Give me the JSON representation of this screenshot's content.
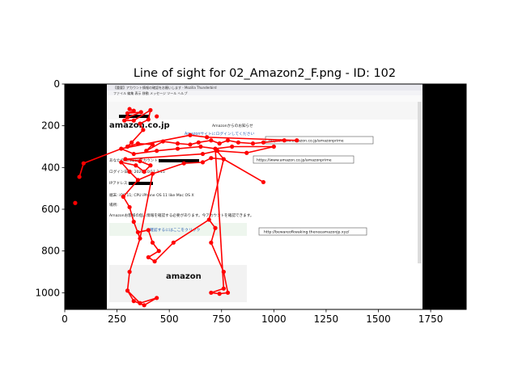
{
  "chart_data": {
    "type": "scatter",
    "title": "Line of sight for 02_Amazon2_F.png - ID: 102",
    "xlabel": "",
    "ylabel": "",
    "xlim": [
      0,
      1920
    ],
    "ylim": [
      1080,
      0
    ],
    "y_inverted": true,
    "xticks": [
      0,
      250,
      500,
      750,
      1000,
      1250,
      1500,
      1750
    ],
    "yticks": [
      0,
      200,
      400,
      600,
      800,
      1000
    ],
    "grid": false,
    "legend": "none",
    "series_color": "#ff0000",
    "background": {
      "type": "screenshot",
      "window_title": "【重要】アカウント情報の確認をお願いします - Mozilla Thunderbird",
      "menu": "ファイル  編集  表示  移動  メッセージ  ツール  ヘルプ",
      "logo": "amazon.co.jp",
      "header_text": "Amazonからのお知らせ",
      "link_top": "Amazonサイトにログインしてください",
      "fields": [
        "あなたのAmazonアカウント",
        "ログイン日時: 2020/10/11 2:15",
        "IPアドレス:",
        "端末: iOS 11; CPU iPhone OS 11 like Mac OS X",
        "場所:"
      ],
      "notice": "Amazonお客様の個人情報を確認する必要があります。今アカウントを確認できます。",
      "button_link": "確認するにはここをクリック",
      "footer_logo": "amazon",
      "annotations": [
        "https://www.amazon.co.jp/amazonprime",
        "https://www.amazon.co.jp/amazonprime",
        "http://bewareofkwaking.theneeamazonjp.xyz/"
      ]
    },
    "fixations": [
      {
        "x": 310,
        "y": 120
      },
      {
        "x": 330,
        "y": 128
      },
      {
        "x": 300,
        "y": 140
      },
      {
        "x": 365,
        "y": 135
      },
      {
        "x": 300,
        "y": 160
      },
      {
        "x": 285,
        "y": 175
      },
      {
        "x": 330,
        "y": 175
      },
      {
        "x": 410,
        "y": 125
      },
      {
        "x": 400,
        "y": 170
      },
      {
        "x": 360,
        "y": 190
      },
      {
        "x": 375,
        "y": 220
      },
      {
        "x": 440,
        "y": 155
      },
      {
        "x": 320,
        "y": 280
      },
      {
        "x": 300,
        "y": 300
      },
      {
        "x": 350,
        "y": 285
      },
      {
        "x": 420,
        "y": 290
      },
      {
        "x": 390,
        "y": 320
      },
      {
        "x": 470,
        "y": 275
      },
      {
        "x": 540,
        "y": 285
      },
      {
        "x": 600,
        "y": 290
      },
      {
        "x": 640,
        "y": 280
      },
      {
        "x": 700,
        "y": 270
      },
      {
        "x": 740,
        "y": 285
      },
      {
        "x": 780,
        "y": 270
      },
      {
        "x": 830,
        "y": 280
      },
      {
        "x": 900,
        "y": 285
      },
      {
        "x": 950,
        "y": 280
      },
      {
        "x": 1050,
        "y": 270
      },
      {
        "x": 1110,
        "y": 270
      },
      {
        "x": 680,
        "y": 255
      },
      {
        "x": 600,
        "y": 245
      },
      {
        "x": 270,
        "y": 310
      },
      {
        "x": 330,
        "y": 335
      },
      {
        "x": 440,
        "y": 320
      },
      {
        "x": 540,
        "y": 310
      },
      {
        "x": 650,
        "y": 300
      },
      {
        "x": 720,
        "y": 310
      },
      {
        "x": 800,
        "y": 300
      },
      {
        "x": 1000,
        "y": 300
      },
      {
        "x": 870,
        "y": 330
      },
      {
        "x": 730,
        "y": 320
      },
      {
        "x": 660,
        "y": 335
      },
      {
        "x": 290,
        "y": 360
      },
      {
        "x": 360,
        "y": 370
      },
      {
        "x": 410,
        "y": 390
      },
      {
        "x": 380,
        "y": 420
      },
      {
        "x": 340,
        "y": 390
      },
      {
        "x": 270,
        "y": 375
      },
      {
        "x": 310,
        "y": 420
      },
      {
        "x": 350,
        "y": 460
      },
      {
        "x": 420,
        "y": 430
      },
      {
        "x": 570,
        "y": 380
      },
      {
        "x": 660,
        "y": 375
      },
      {
        "x": 700,
        "y": 355
      },
      {
        "x": 760,
        "y": 360
      },
      {
        "x": 950,
        "y": 470
      },
      {
        "x": 90,
        "y": 380
      },
      {
        "x": 70,
        "y": 445
      },
      {
        "x": 50,
        "y": 570
      },
      {
        "x": 280,
        "y": 540
      },
      {
        "x": 310,
        "y": 590
      },
      {
        "x": 330,
        "y": 660
      },
      {
        "x": 360,
        "y": 740
      },
      {
        "x": 350,
        "y": 710
      },
      {
        "x": 400,
        "y": 700
      },
      {
        "x": 420,
        "y": 760
      },
      {
        "x": 450,
        "y": 800
      },
      {
        "x": 400,
        "y": 830
      },
      {
        "x": 430,
        "y": 850
      },
      {
        "x": 520,
        "y": 760
      },
      {
        "x": 690,
        "y": 650
      },
      {
        "x": 720,
        "y": 690
      },
      {
        "x": 700,
        "y": 760
      },
      {
        "x": 760,
        "y": 900
      },
      {
        "x": 780,
        "y": 1000
      },
      {
        "x": 740,
        "y": 1005
      },
      {
        "x": 700,
        "y": 1000
      },
      {
        "x": 760,
        "y": 980
      },
      {
        "x": 310,
        "y": 900
      },
      {
        "x": 300,
        "y": 990
      },
      {
        "x": 330,
        "y": 1040
      },
      {
        "x": 380,
        "y": 1060
      },
      {
        "x": 440,
        "y": 1025
      },
      {
        "x": 360,
        "y": 1050
      }
    ],
    "segments": [
      [
        [
          310,
          120
        ],
        [
          330,
          128
        ]
      ],
      [
        [
          330,
          128
        ],
        [
          300,
          140
        ]
      ],
      [
        [
          300,
          140
        ],
        [
          365,
          135
        ]
      ],
      [
        [
          365,
          135
        ],
        [
          300,
          160
        ]
      ],
      [
        [
          300,
          160
        ],
        [
          285,
          175
        ]
      ],
      [
        [
          285,
          175
        ],
        [
          330,
          175
        ]
      ],
      [
        [
          330,
          175
        ],
        [
          410,
          125
        ]
      ],
      [
        [
          410,
          125
        ],
        [
          400,
          170
        ]
      ],
      [
        [
          400,
          170
        ],
        [
          360,
          190
        ]
      ],
      [
        [
          360,
          190
        ],
        [
          375,
          220
        ]
      ],
      [
        [
          375,
          220
        ],
        [
          320,
          280
        ]
      ],
      [
        [
          320,
          280
        ],
        [
          300,
          300
        ]
      ],
      [
        [
          300,
          300
        ],
        [
          350,
          285
        ]
      ],
      [
        [
          350,
          285
        ],
        [
          420,
          290
        ]
      ],
      [
        [
          420,
          290
        ],
        [
          390,
          320
        ]
      ],
      [
        [
          390,
          320
        ],
        [
          470,
          275
        ]
      ],
      [
        [
          470,
          275
        ],
        [
          540,
          285
        ]
      ],
      [
        [
          540,
          285
        ],
        [
          600,
          290
        ]
      ],
      [
        [
          600,
          290
        ],
        [
          640,
          280
        ]
      ],
      [
        [
          640,
          280
        ],
        [
          700,
          270
        ]
      ],
      [
        [
          700,
          270
        ],
        [
          740,
          285
        ]
      ],
      [
        [
          740,
          285
        ],
        [
          780,
          270
        ]
      ],
      [
        [
          780,
          270
        ],
        [
          830,
          280
        ]
      ],
      [
        [
          830,
          280
        ],
        [
          900,
          285
        ]
      ],
      [
        [
          900,
          285
        ],
        [
          950,
          280
        ]
      ],
      [
        [
          950,
          280
        ],
        [
          1050,
          270
        ]
      ],
      [
        [
          1050,
          270
        ],
        [
          1110,
          270
        ]
      ],
      [
        [
          1110,
          270
        ],
        [
          680,
          255
        ]
      ],
      [
        [
          680,
          255
        ],
        [
          600,
          245
        ]
      ],
      [
        [
          600,
          245
        ],
        [
          270,
          310
        ]
      ],
      [
        [
          270,
          310
        ],
        [
          330,
          335
        ]
      ],
      [
        [
          330,
          335
        ],
        [
          440,
          320
        ]
      ],
      [
        [
          440,
          320
        ],
        [
          540,
          310
        ]
      ],
      [
        [
          540,
          310
        ],
        [
          650,
          300
        ]
      ],
      [
        [
          650,
          300
        ],
        [
          720,
          310
        ]
      ],
      [
        [
          720,
          310
        ],
        [
          800,
          300
        ]
      ],
      [
        [
          800,
          300
        ],
        [
          1000,
          300
        ]
      ],
      [
        [
          1000,
          300
        ],
        [
          870,
          330
        ]
      ],
      [
        [
          870,
          330
        ],
        [
          730,
          320
        ]
      ],
      [
        [
          730,
          320
        ],
        [
          660,
          335
        ]
      ],
      [
        [
          660,
          335
        ],
        [
          290,
          360
        ]
      ],
      [
        [
          290,
          360
        ],
        [
          360,
          370
        ]
      ],
      [
        [
          360,
          370
        ],
        [
          410,
          390
        ]
      ],
      [
        [
          410,
          390
        ],
        [
          380,
          420
        ]
      ],
      [
        [
          380,
          420
        ],
        [
          340,
          390
        ]
      ],
      [
        [
          340,
          390
        ],
        [
          270,
          375
        ]
      ],
      [
        [
          270,
          375
        ],
        [
          310,
          420
        ]
      ],
      [
        [
          310,
          420
        ],
        [
          350,
          460
        ]
      ],
      [
        [
          350,
          460
        ],
        [
          420,
          430
        ]
      ],
      [
        [
          420,
          430
        ],
        [
          570,
          380
        ]
      ],
      [
        [
          570,
          380
        ],
        [
          660,
          375
        ]
      ],
      [
        [
          660,
          375
        ],
        [
          700,
          355
        ]
      ],
      [
        [
          700,
          355
        ],
        [
          760,
          360
        ]
      ],
      [
        [
          760,
          360
        ],
        [
          950,
          470
        ]
      ],
      [
        [
          270,
          310
        ],
        [
          90,
          380
        ]
      ],
      [
        [
          90,
          380
        ],
        [
          70,
          445
        ]
      ],
      [
        [
          350,
          460
        ],
        [
          280,
          540
        ]
      ],
      [
        [
          280,
          540
        ],
        [
          310,
          590
        ]
      ],
      [
        [
          310,
          590
        ],
        [
          330,
          660
        ]
      ],
      [
        [
          330,
          660
        ],
        [
          360,
          740
        ]
      ],
      [
        [
          360,
          740
        ],
        [
          350,
          710
        ]
      ],
      [
        [
          350,
          710
        ],
        [
          400,
          700
        ]
      ],
      [
        [
          400,
          700
        ],
        [
          420,
          760
        ]
      ],
      [
        [
          420,
          760
        ],
        [
          450,
          800
        ]
      ],
      [
        [
          450,
          800
        ],
        [
          400,
          830
        ]
      ],
      [
        [
          400,
          830
        ],
        [
          430,
          850
        ]
      ],
      [
        [
          430,
          850
        ],
        [
          520,
          760
        ]
      ],
      [
        [
          520,
          760
        ],
        [
          690,
          650
        ]
      ],
      [
        [
          690,
          650
        ],
        [
          720,
          690
        ]
      ],
      [
        [
          720,
          690
        ],
        [
          700,
          760
        ]
      ],
      [
        [
          700,
          760
        ],
        [
          760,
          900
        ]
      ],
      [
        [
          760,
          900
        ],
        [
          780,
          1000
        ]
      ],
      [
        [
          780,
          1000
        ],
        [
          740,
          1005
        ]
      ],
      [
        [
          740,
          1005
        ],
        [
          700,
          1000
        ]
      ],
      [
        [
          700,
          1000
        ],
        [
          760,
          980
        ]
      ],
      [
        [
          760,
          980
        ],
        [
          720,
          310
        ]
      ],
      [
        [
          720,
          310
        ],
        [
          760,
          360
        ]
      ],
      [
        [
          760,
          360
        ],
        [
          690,
          650
        ]
      ],
      [
        [
          310,
          900
        ],
        [
          300,
          990
        ]
      ],
      [
        [
          300,
          990
        ],
        [
          330,
          1040
        ]
      ],
      [
        [
          330,
          1040
        ],
        [
          380,
          1060
        ]
      ],
      [
        [
          380,
          1060
        ],
        [
          440,
          1025
        ]
      ],
      [
        [
          440,
          1025
        ],
        [
          360,
          1050
        ]
      ],
      [
        [
          360,
          1050
        ],
        [
          300,
          990
        ]
      ],
      [
        [
          420,
          430
        ],
        [
          360,
          740
        ]
      ],
      [
        [
          360,
          740
        ],
        [
          310,
          900
        ]
      ]
    ]
  }
}
